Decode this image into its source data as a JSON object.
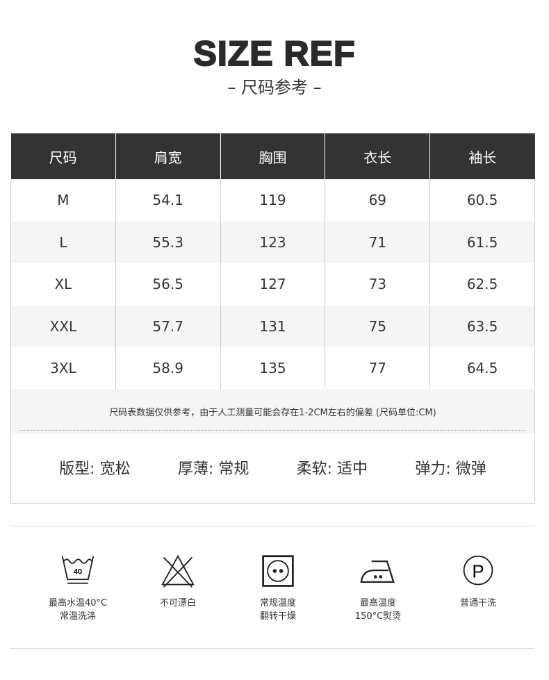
{
  "header": {
    "title": "SIZE REF",
    "subtitle": "– 尺码参考 –"
  },
  "table": {
    "columns": [
      "尺码",
      "肩宽",
      "胸围",
      "衣长",
      "袖长"
    ],
    "rows": [
      [
        "M",
        "54.1",
        "119",
        "69",
        "60.5"
      ],
      [
        "L",
        "55.3",
        "123",
        "71",
        "61.5"
      ],
      [
        "XL",
        "56.5",
        "127",
        "73",
        "62.5"
      ],
      [
        "XXL",
        "57.7",
        "131",
        "75",
        "63.5"
      ],
      [
        "3XL",
        "58.9",
        "135",
        "77",
        "64.5"
      ]
    ]
  },
  "note": "尺码表数据仅供参考，由于人工测量可能会存在1-2CM左右的偏差 (尺码单位:CM)",
  "attributes": [
    "版型: 宽松",
    "厚薄: 常规",
    "柔软: 适中",
    "弹力: 微弹"
  ],
  "care": [
    {
      "icon": "wash-40-icon",
      "badge": "40",
      "line1": "最高水温40°C",
      "line2": "常温洗涤"
    },
    {
      "icon": "no-bleach-icon",
      "line1": "不可漂白",
      "line2": ""
    },
    {
      "icon": "tumble-dry-icon",
      "line1": "常规温度",
      "line2": "翻转干燥"
    },
    {
      "icon": "iron-icon",
      "line1": "最高温度",
      "line2": "150°C熨烫"
    },
    {
      "icon": "dry-clean-p-icon",
      "badge": "P",
      "line1": "普通干洗",
      "line2": ""
    }
  ]
}
